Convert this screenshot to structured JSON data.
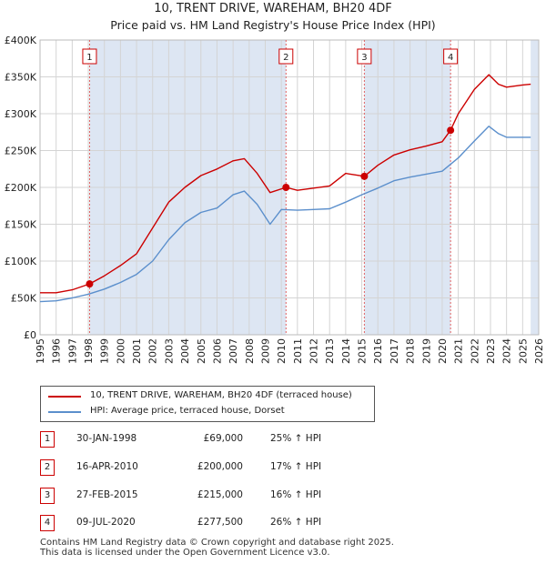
{
  "title": "10, TRENT DRIVE, WAREHAM, BH20 4DF",
  "subtitle": "Price paid vs. HM Land Registry's House Price Index (HPI)",
  "colors": {
    "property_line": "#cc0000",
    "hpi_line": "#5b8fcc",
    "shade": "#dde6f3",
    "grid": "#d4d4d4",
    "marker_line": "#e06060"
  },
  "chart_data": {
    "type": "line",
    "title": "10, TRENT DRIVE, WAREHAM, BH20 4DF",
    "subtitle": "Price paid vs. HM Land Registry's House Price Index (HPI)",
    "xlabel": "",
    "ylabel": "",
    "xlim": [
      1995,
      2026
    ],
    "ylim": [
      0,
      400000
    ],
    "y_ticks": [
      0,
      50000,
      100000,
      150000,
      200000,
      250000,
      300000,
      350000,
      400000
    ],
    "y_tick_labels": [
      "£0",
      "£50K",
      "£100K",
      "£150K",
      "£200K",
      "£250K",
      "£300K",
      "£350K",
      "£400K"
    ],
    "x_ticks": [
      1995,
      1996,
      1997,
      1998,
      1999,
      2000,
      2001,
      2002,
      2003,
      2004,
      2005,
      2006,
      2007,
      2008,
      2009,
      2010,
      2011,
      2012,
      2013,
      2014,
      2015,
      2016,
      2017,
      2018,
      2019,
      2020,
      2021,
      2022,
      2023,
      2024,
      2025,
      2026
    ],
    "x_tick_labels": [
      "1995",
      "1996",
      "1997",
      "1998",
      "1999",
      "2000",
      "2001",
      "2002",
      "2003",
      "2004",
      "2005",
      "2006",
      "2007",
      "2008",
      "2009",
      "2010",
      "2011",
      "2012",
      "2013",
      "2014",
      "2015",
      "2016",
      "2017",
      "2018",
      "2019",
      "2020",
      "2021",
      "2022",
      "2023",
      "2024",
      "2025",
      "2026"
    ],
    "grid": true,
    "series": [
      {
        "name": "10, TRENT DRIVE, WAREHAM, BH20 4DF (terraced house)",
        "x": [
          1995.0,
          1996.0,
          1997.0,
          1998.08,
          1999.0,
          2000.0,
          2001.0,
          2002.0,
          2003.0,
          2004.0,
          2005.0,
          2006.0,
          2007.0,
          2007.7,
          2008.5,
          2009.3,
          2010.29,
          2011.0,
          2012.0,
          2013.0,
          2014.0,
          2015.16,
          2016.0,
          2017.0,
          2018.0,
          2019.0,
          2020.0,
          2020.52,
          2021.0,
          2022.0,
          2022.9,
          2023.5,
          2024.0,
          2025.0,
          2025.5
        ],
        "values": [
          57000,
          57000,
          61000,
          69000,
          80000,
          94000,
          110000,
          145000,
          180000,
          200000,
          216000,
          225000,
          236000,
          239000,
          219000,
          193000,
          200000,
          196000,
          199000,
          202000,
          219000,
          215000,
          230000,
          244000,
          251000,
          256000,
          262000,
          277500,
          300000,
          333000,
          353000,
          340000,
          336000,
          339000,
          340000
        ]
      },
      {
        "name": "HPI: Average price, terraced house, Dorset",
        "x": [
          1995.0,
          1996.0,
          1997.0,
          1998.0,
          1999.0,
          2000.0,
          2001.0,
          2002.0,
          2003.0,
          2004.0,
          2005.0,
          2006.0,
          2007.0,
          2007.7,
          2008.5,
          2009.3,
          2010.0,
          2011.0,
          2012.0,
          2013.0,
          2014.0,
          2015.0,
          2016.0,
          2017.0,
          2018.0,
          2019.0,
          2020.0,
          2021.0,
          2022.0,
          2022.9,
          2023.5,
          2024.0,
          2025.0,
          2025.5
        ],
        "values": [
          45000,
          46000,
          50000,
          55000,
          62000,
          71000,
          82000,
          100000,
          129000,
          152000,
          166000,
          172000,
          190000,
          195000,
          177000,
          150000,
          170000,
          169000,
          170000,
          171000,
          180000,
          190000,
          199000,
          209000,
          214000,
          218000,
          222000,
          240000,
          263000,
          283000,
          273000,
          268000,
          268000,
          268000
        ]
      }
    ],
    "sales": [
      {
        "id": "1",
        "x": 1998.08,
        "value": 69000
      },
      {
        "id": "2",
        "x": 2010.29,
        "value": 200000
      },
      {
        "id": "3",
        "x": 2015.16,
        "value": 215000
      },
      {
        "id": "4",
        "x": 2020.52,
        "value": 277500
      }
    ],
    "shaded_spans": [
      [
        1998.08,
        2010.29
      ],
      [
        2015.16,
        2020.52
      ],
      [
        2025.5,
        2026.0
      ]
    ],
    "legend_position": "bottom"
  },
  "legend": {
    "property_label": "10, TRENT DRIVE, WAREHAM, BH20 4DF (terraced house)",
    "hpi_label": "HPI: Average price, terraced house, Dorset"
  },
  "sales_table": [
    {
      "num": "1",
      "date": "30-JAN-1998",
      "price": "£69,000",
      "hpi": "25% ↑ HPI"
    },
    {
      "num": "2",
      "date": "16-APR-2010",
      "price": "£200,000",
      "hpi": "17% ↑ HPI"
    },
    {
      "num": "3",
      "date": "27-FEB-2015",
      "price": "£215,000",
      "hpi": "16% ↑ HPI"
    },
    {
      "num": "4",
      "date": "09-JUL-2020",
      "price": "£277,500",
      "hpi": "26% ↑ HPI"
    }
  ],
  "footer": {
    "line1": "Contains HM Land Registry data © Crown copyright and database right 2025.",
    "line2": "This data is licensed under the Open Government Licence v3.0."
  }
}
